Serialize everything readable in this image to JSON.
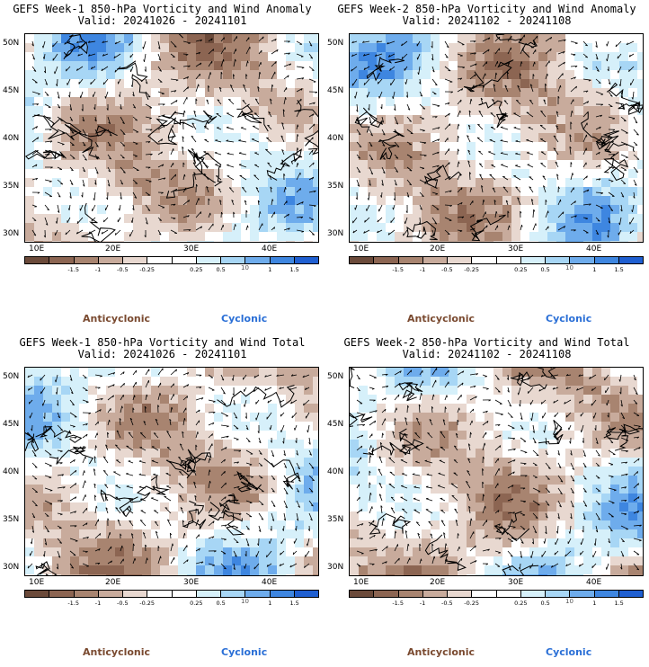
{
  "colorbar": {
    "colors": [
      "#6b4a3a",
      "#8c6552",
      "#a88470",
      "#c8ab9c",
      "#e8d8d0",
      "#ffffff",
      "#ffffff",
      "#d6f0fa",
      "#a7d6f5",
      "#6eacec",
      "#3e86e0",
      "#1f5fd1"
    ],
    "ticks": [
      "-1.5",
      "-1",
      "-0.5",
      "-0.25",
      "0.25",
      "0.5",
      "1",
      "1.5"
    ],
    "scale_label": "10"
  },
  "axes": {
    "lat_labels": [
      "50N",
      "45N",
      "40N",
      "35N",
      "30N"
    ],
    "lon_labels": [
      "10E",
      "20E",
      "30E",
      "40E"
    ]
  },
  "legend": {
    "anticyclonic": "Anticyclonic",
    "cyclonic": "Cyclonic"
  },
  "panels": [
    {
      "title": "GEFS Week-1 850-hPa Vorticity and Wind Anomaly",
      "valid": "Valid: 20241026 - 20241101"
    },
    {
      "title": "GEFS Week-2 850-hPa Vorticity and Wind Anomaly",
      "valid": "Valid: 20241102 - 20241108"
    },
    {
      "title": "GEFS Week-1 850-hPa Vorticity and Wind Total",
      "valid": "Valid: 20241026 - 20241101"
    },
    {
      "title": "GEFS Week-2 850-hPa Vorticity and Wind Total",
      "valid": "Valid: 20241102 - 20241108"
    }
  ]
}
